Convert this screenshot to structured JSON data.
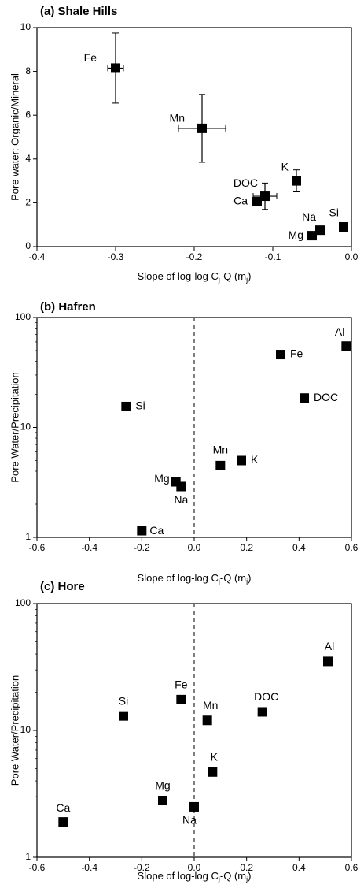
{
  "chart_data": [
    {
      "type": "scatter",
      "title": "(a) Shale Hills",
      "x_label": [
        "Slope of log-log C",
        "j",
        "-Q (m",
        "j",
        ")"
      ],
      "y_label": "Pore water: Organic/Mineral",
      "xlim": [
        -0.4,
        0
      ],
      "ylim": [
        0,
        10
      ],
      "xticks": [
        -0.4,
        -0.3,
        -0.2,
        -0.1,
        {
          "value": 0,
          "label": "0.0"
        }
      ],
      "yticks": [
        0,
        2,
        4,
        6,
        8,
        10
      ],
      "yscale": "linear",
      "zero_line": false,
      "color": "#000000",
      "points": [
        {
          "label": "Fe",
          "x": -0.3,
          "y": 8.15,
          "xerr": 0.01,
          "yerr": 1.6
        },
        {
          "label": "Mn",
          "x": -0.19,
          "y": 5.4,
          "xerr": 0.03,
          "yerr": 1.55
        },
        {
          "label": "DOC",
          "x": -0.11,
          "y": 2.3,
          "xerr": 0.015,
          "yerr": 0.6
        },
        {
          "label": "Ca",
          "x": -0.12,
          "y": 2.05
        },
        {
          "label": "K",
          "x": -0.07,
          "y": 3.0,
          "yerr": 0.5
        },
        {
          "label": "Na",
          "x": -0.04,
          "y": 0.75
        },
        {
          "label": "Si",
          "x": -0.01,
          "y": 0.9
        },
        {
          "label": "Mg",
          "x": -0.05,
          "y": 0.5
        }
      ]
    },
    {
      "type": "scatter",
      "title": "(b) Hafren",
      "x_label": [
        "Slope of log-log C",
        "j",
        "-Q (m",
        "j",
        ")"
      ],
      "y_label": "Pore Water/Precipitation",
      "xlim": [
        -0.6,
        0.6
      ],
      "ylim": [
        1,
        100
      ],
      "xticks": [
        -0.6,
        -0.4,
        -0.2,
        {
          "value": 0,
          "label": "0.0"
        },
        0.2,
        0.4,
        0.6
      ],
      "yticks": [
        1,
        10,
        100
      ],
      "yscale": "log",
      "zero_line": true,
      "color": "#000000",
      "points": [
        {
          "label": "Al",
          "x": 0.58,
          "y": 55
        },
        {
          "label": "Fe",
          "x": 0.33,
          "y": 46
        },
        {
          "label": "DOC",
          "x": 0.42,
          "y": 18.5
        },
        {
          "label": "Si",
          "x": -0.26,
          "y": 15.5
        },
        {
          "label": "Mn",
          "x": 0.1,
          "y": 4.5
        },
        {
          "label": "K",
          "x": 0.18,
          "y": 5.0
        },
        {
          "label": "Mg",
          "x": -0.07,
          "y": 3.2
        },
        {
          "label": "Na",
          "x": -0.05,
          "y": 2.9
        },
        {
          "label": "Ca",
          "x": -0.2,
          "y": 1.15
        }
      ]
    },
    {
      "type": "scatter",
      "title": "(c) Hore",
      "x_label": [
        "Slope of log-log C",
        "j",
        "-Q (m",
        "j",
        ")"
      ],
      "y_label": "Pore Water/Precipitation",
      "xlim": [
        -0.6,
        0.6
      ],
      "ylim": [
        1,
        100
      ],
      "xticks": [
        -0.6,
        -0.4,
        -0.2,
        {
          "value": 0,
          "label": "0.0"
        },
        0.2,
        0.4,
        0.6
      ],
      "yticks": [
        1,
        10,
        100
      ],
      "yscale": "log",
      "zero_line": true,
      "color": "#000000",
      "points": [
        {
          "label": "Ca",
          "x": -0.5,
          "y": 1.9
        },
        {
          "label": "Si",
          "x": -0.27,
          "y": 13
        },
        {
          "label": "Mg",
          "x": -0.12,
          "y": 2.8
        },
        {
          "label": "Fe",
          "x": -0.05,
          "y": 17.5
        },
        {
          "label": "Na",
          "x": 0.0,
          "y": 2.5
        },
        {
          "label": "Mn",
          "x": 0.05,
          "y": 12
        },
        {
          "label": "K",
          "x": 0.07,
          "y": 4.7
        },
        {
          "label": "DOC",
          "x": 0.26,
          "y": 14
        },
        {
          "label": "Al",
          "x": 0.51,
          "y": 35
        }
      ]
    }
  ]
}
